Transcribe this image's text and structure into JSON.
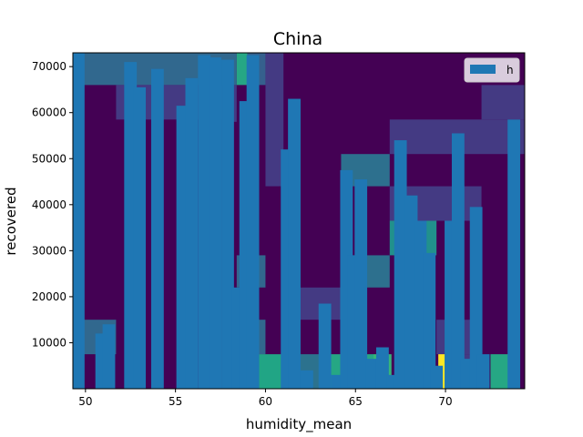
{
  "chart_data": {
    "type": "bar",
    "title": "China",
    "xlabel": "humidity_mean",
    "ylabel": "recovered",
    "xlim": [
      49.3,
      74.4
    ],
    "ylim": [
      0,
      73000
    ],
    "xticks": [
      50,
      55,
      60,
      65,
      70
    ],
    "yticks": [
      10000,
      20000,
      30000,
      40000,
      50000,
      60000,
      70000
    ],
    "legend": {
      "position": "upper-right",
      "label": "h"
    },
    "bar_color": "#1f77b4",
    "bar_width": 0.7,
    "bars": [
      {
        "x": 49.6,
        "y": 73000
      },
      {
        "x": 50.9,
        "y": 12000
      },
      {
        "x": 51.3,
        "y": 14000
      },
      {
        "x": 52.5,
        "y": 71000
      },
      {
        "x": 53.0,
        "y": 65500
      },
      {
        "x": 54.0,
        "y": 69500
      },
      {
        "x": 55.4,
        "y": 61500
      },
      {
        "x": 55.9,
        "y": 67500
      },
      {
        "x": 56.6,
        "y": 72500
      },
      {
        "x": 57.2,
        "y": 72000
      },
      {
        "x": 57.9,
        "y": 71500
      },
      {
        "x": 58.5,
        "y": 22000
      },
      {
        "x": 58.9,
        "y": 62500
      },
      {
        "x": 59.3,
        "y": 72500
      },
      {
        "x": 61.2,
        "y": 52000
      },
      {
        "x": 61.6,
        "y": 63000
      },
      {
        "x": 62.3,
        "y": 4000
      },
      {
        "x": 63.3,
        "y": 18500
      },
      {
        "x": 64.0,
        "y": 3000
      },
      {
        "x": 64.5,
        "y": 47500
      },
      {
        "x": 64.9,
        "y": 29000
      },
      {
        "x": 65.3,
        "y": 45500
      },
      {
        "x": 65.9,
        "y": 6500
      },
      {
        "x": 66.5,
        "y": 9000
      },
      {
        "x": 67.1,
        "y": 3000
      },
      {
        "x": 67.5,
        "y": 54000
      },
      {
        "x": 68.1,
        "y": 42000
      },
      {
        "x": 68.6,
        "y": 36500
      },
      {
        "x": 69.1,
        "y": 29500
      },
      {
        "x": 69.5,
        "y": 5000
      },
      {
        "x": 70.3,
        "y": 36500
      },
      {
        "x": 70.7,
        "y": 55500
      },
      {
        "x": 71.2,
        "y": 6500
      },
      {
        "x": 71.7,
        "y": 39500
      },
      {
        "x": 72.1,
        "y": 7500
      },
      {
        "x": 73.8,
        "y": 58500
      }
    ],
    "background_heatmap": {
      "colormap": "viridis",
      "base_color": "#440154",
      "cells": [
        {
          "x0": 49.3,
          "x1": 58.4,
          "y0": 66000,
          "y1": 73000,
          "color": "#31688e"
        },
        {
          "x0": 58.4,
          "x1": 59.0,
          "y0": 66000,
          "y1": 73000,
          "color": "#26a784"
        },
        {
          "x0": 59.0,
          "x1": 60.0,
          "y0": 66000,
          "y1": 73000,
          "color": "#35608d"
        },
        {
          "x0": 60.0,
          "x1": 61.0,
          "y0": 44000,
          "y1": 73000,
          "color": "#443a83"
        },
        {
          "x0": 58.0,
          "x1": 58.4,
          "y0": 58000,
          "y1": 66000,
          "color": "#443a83"
        },
        {
          "x0": 51.7,
          "x1": 58.0,
          "y0": 58500,
          "y1": 66000,
          "color": "#443a83"
        },
        {
          "x0": 66.9,
          "x1": 74.4,
          "y0": 51000,
          "y1": 58500,
          "color": "#443a83"
        },
        {
          "x0": 72.0,
          "x1": 74.4,
          "y0": 58500,
          "y1": 66000,
          "color": "#443a83"
        },
        {
          "x0": 64.2,
          "x1": 66.9,
          "y0": 44000,
          "y1": 51000,
          "color": "#2d708e"
        },
        {
          "x0": 66.9,
          "x1": 72.0,
          "y0": 36500,
          "y1": 44000,
          "color": "#443a83"
        },
        {
          "x0": 66.9,
          "x1": 69.5,
          "y0": 29000,
          "y1": 36500,
          "color": "#21918c"
        },
        {
          "x0": 64.2,
          "x1": 66.9,
          "y0": 22000,
          "y1": 29000,
          "color": "#2d708e"
        },
        {
          "x0": 58.4,
          "x1": 60.0,
          "y0": 22000,
          "y1": 29000,
          "color": "#31688e"
        },
        {
          "x0": 61.0,
          "x1": 64.2,
          "y0": 15000,
          "y1": 22000,
          "color": "#443a83"
        },
        {
          "x0": 49.3,
          "x1": 51.7,
          "y0": 7500,
          "y1": 15000,
          "color": "#31688e"
        },
        {
          "x0": 58.0,
          "x1": 60.0,
          "y0": 7500,
          "y1": 15000,
          "color": "#31688e"
        },
        {
          "x0": 69.5,
          "x1": 72.0,
          "y0": 7500,
          "y1": 15000,
          "color": "#443a83"
        },
        {
          "x0": 58.4,
          "x1": 61.0,
          "y0": 0,
          "y1": 7500,
          "color": "#21a585"
        },
        {
          "x0": 61.0,
          "x1": 63.5,
          "y0": 0,
          "y1": 7500,
          "color": "#2c728e"
        },
        {
          "x0": 63.5,
          "x1": 66.0,
          "y0": 0,
          "y1": 7500,
          "color": "#26a784"
        },
        {
          "x0": 66.0,
          "x1": 67.0,
          "y0": 0,
          "y1": 7500,
          "color": "#37b578"
        },
        {
          "x0": 69.6,
          "x1": 70.0,
          "y0": 0,
          "y1": 7500,
          "color": "#fde725"
        },
        {
          "x0": 70.0,
          "x1": 71.8,
          "y0": 0,
          "y1": 7500,
          "color": "#443a83"
        },
        {
          "x0": 72.5,
          "x1": 74.0,
          "y0": 0,
          "y1": 7500,
          "color": "#26a784"
        }
      ]
    }
  }
}
